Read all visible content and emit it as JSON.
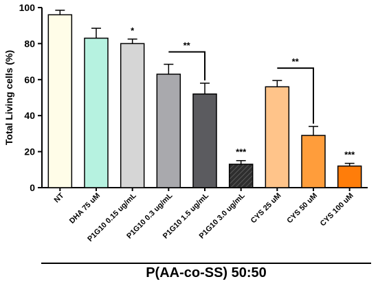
{
  "chart_data": {
    "type": "bar",
    "title": "",
    "xlabel": "P(AA-co-SS) 50:50",
    "ylabel": "Total Living cells (%)",
    "ylim": [
      0,
      100
    ],
    "yticks": [
      0,
      20,
      40,
      60,
      80,
      100
    ],
    "grid": false,
    "legend": "none",
    "categories": [
      "NT",
      "DHA 75 uM",
      "P1G10 0.15 ug/mL",
      "P1G10 0.3 ug/mL",
      "P1G10 1.5 ug/mL",
      "P1G10 3.0 ug/mL",
      "CYS 25 uM",
      "CYS 50 uM",
      "CYS 100 uM"
    ],
    "values": [
      96,
      83,
      80,
      63,
      52,
      13,
      56,
      29,
      12
    ],
    "errors": [
      2.5,
      5.5,
      2.5,
      5.5,
      6,
      2,
      3.5,
      5,
      1.5
    ],
    "colors": [
      "#fffde8",
      "#b6f2e0",
      "#d6d6d6",
      "#a9a9ad",
      "#5b5b5f",
      "#2e2e2e",
      "#ffc48a",
      "#ff9d3b",
      "#ff7d0a"
    ],
    "hatched": [
      false,
      false,
      false,
      false,
      false,
      true,
      false,
      false,
      false
    ],
    "significance": [
      "",
      "",
      "*",
      "",
      "",
      "***",
      "",
      "",
      "***"
    ],
    "brackets": [
      {
        "from": 3,
        "to": 4,
        "label": "**"
      },
      {
        "from": 6,
        "to": 7,
        "label": "**"
      }
    ]
  }
}
